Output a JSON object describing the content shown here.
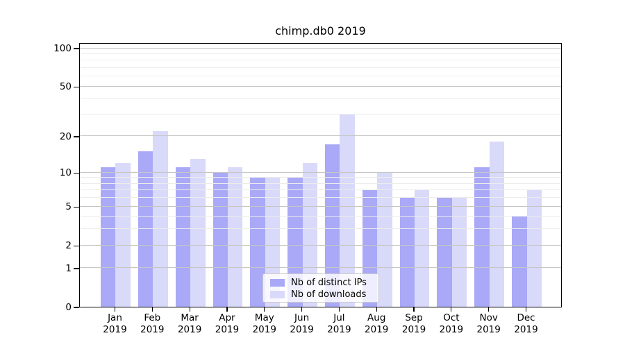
{
  "title": "chimp.db0 2019",
  "colors": {
    "distinct_ips": "#a9a9f7",
    "downloads": "#d9d9fa",
    "grid_major": "#c6c6c6",
    "grid_minor": "#ececec",
    "spine": "#000000"
  },
  "chart_data": {
    "type": "bar",
    "title": "chimp.db0 2019",
    "categories": [
      "Jan 2019",
      "Feb 2019",
      "Mar 2019",
      "Apr 2019",
      "May 2019",
      "Jun 2019",
      "Jul 2019",
      "Aug 2019",
      "Sep 2019",
      "Oct 2019",
      "Nov 2019",
      "Dec 2019"
    ],
    "series": [
      {
        "name": "Nb of distinct IPs",
        "color": "#a9a9f7",
        "values": [
          11,
          15,
          11,
          10,
          9,
          9,
          17,
          7,
          6,
          6,
          11,
          4
        ]
      },
      {
        "name": "Nb of downloads",
        "color": "#d9d9fa",
        "values": [
          12,
          22,
          13,
          11,
          9,
          12,
          30,
          10,
          7,
          6,
          18,
          7
        ]
      }
    ],
    "xlabel": "",
    "ylabel": "",
    "y_scale": "log1p",
    "y_ticks": [
      0,
      1,
      2,
      5,
      10,
      20,
      50,
      100
    ],
    "y_minor_ticks": [
      3,
      4,
      6,
      7,
      8,
      9,
      30,
      40,
      60,
      70,
      80,
      90
    ],
    "ylim": [
      0,
      110.5
    ],
    "grid": true,
    "grid_on_top": true,
    "legend_position": "lower center"
  }
}
